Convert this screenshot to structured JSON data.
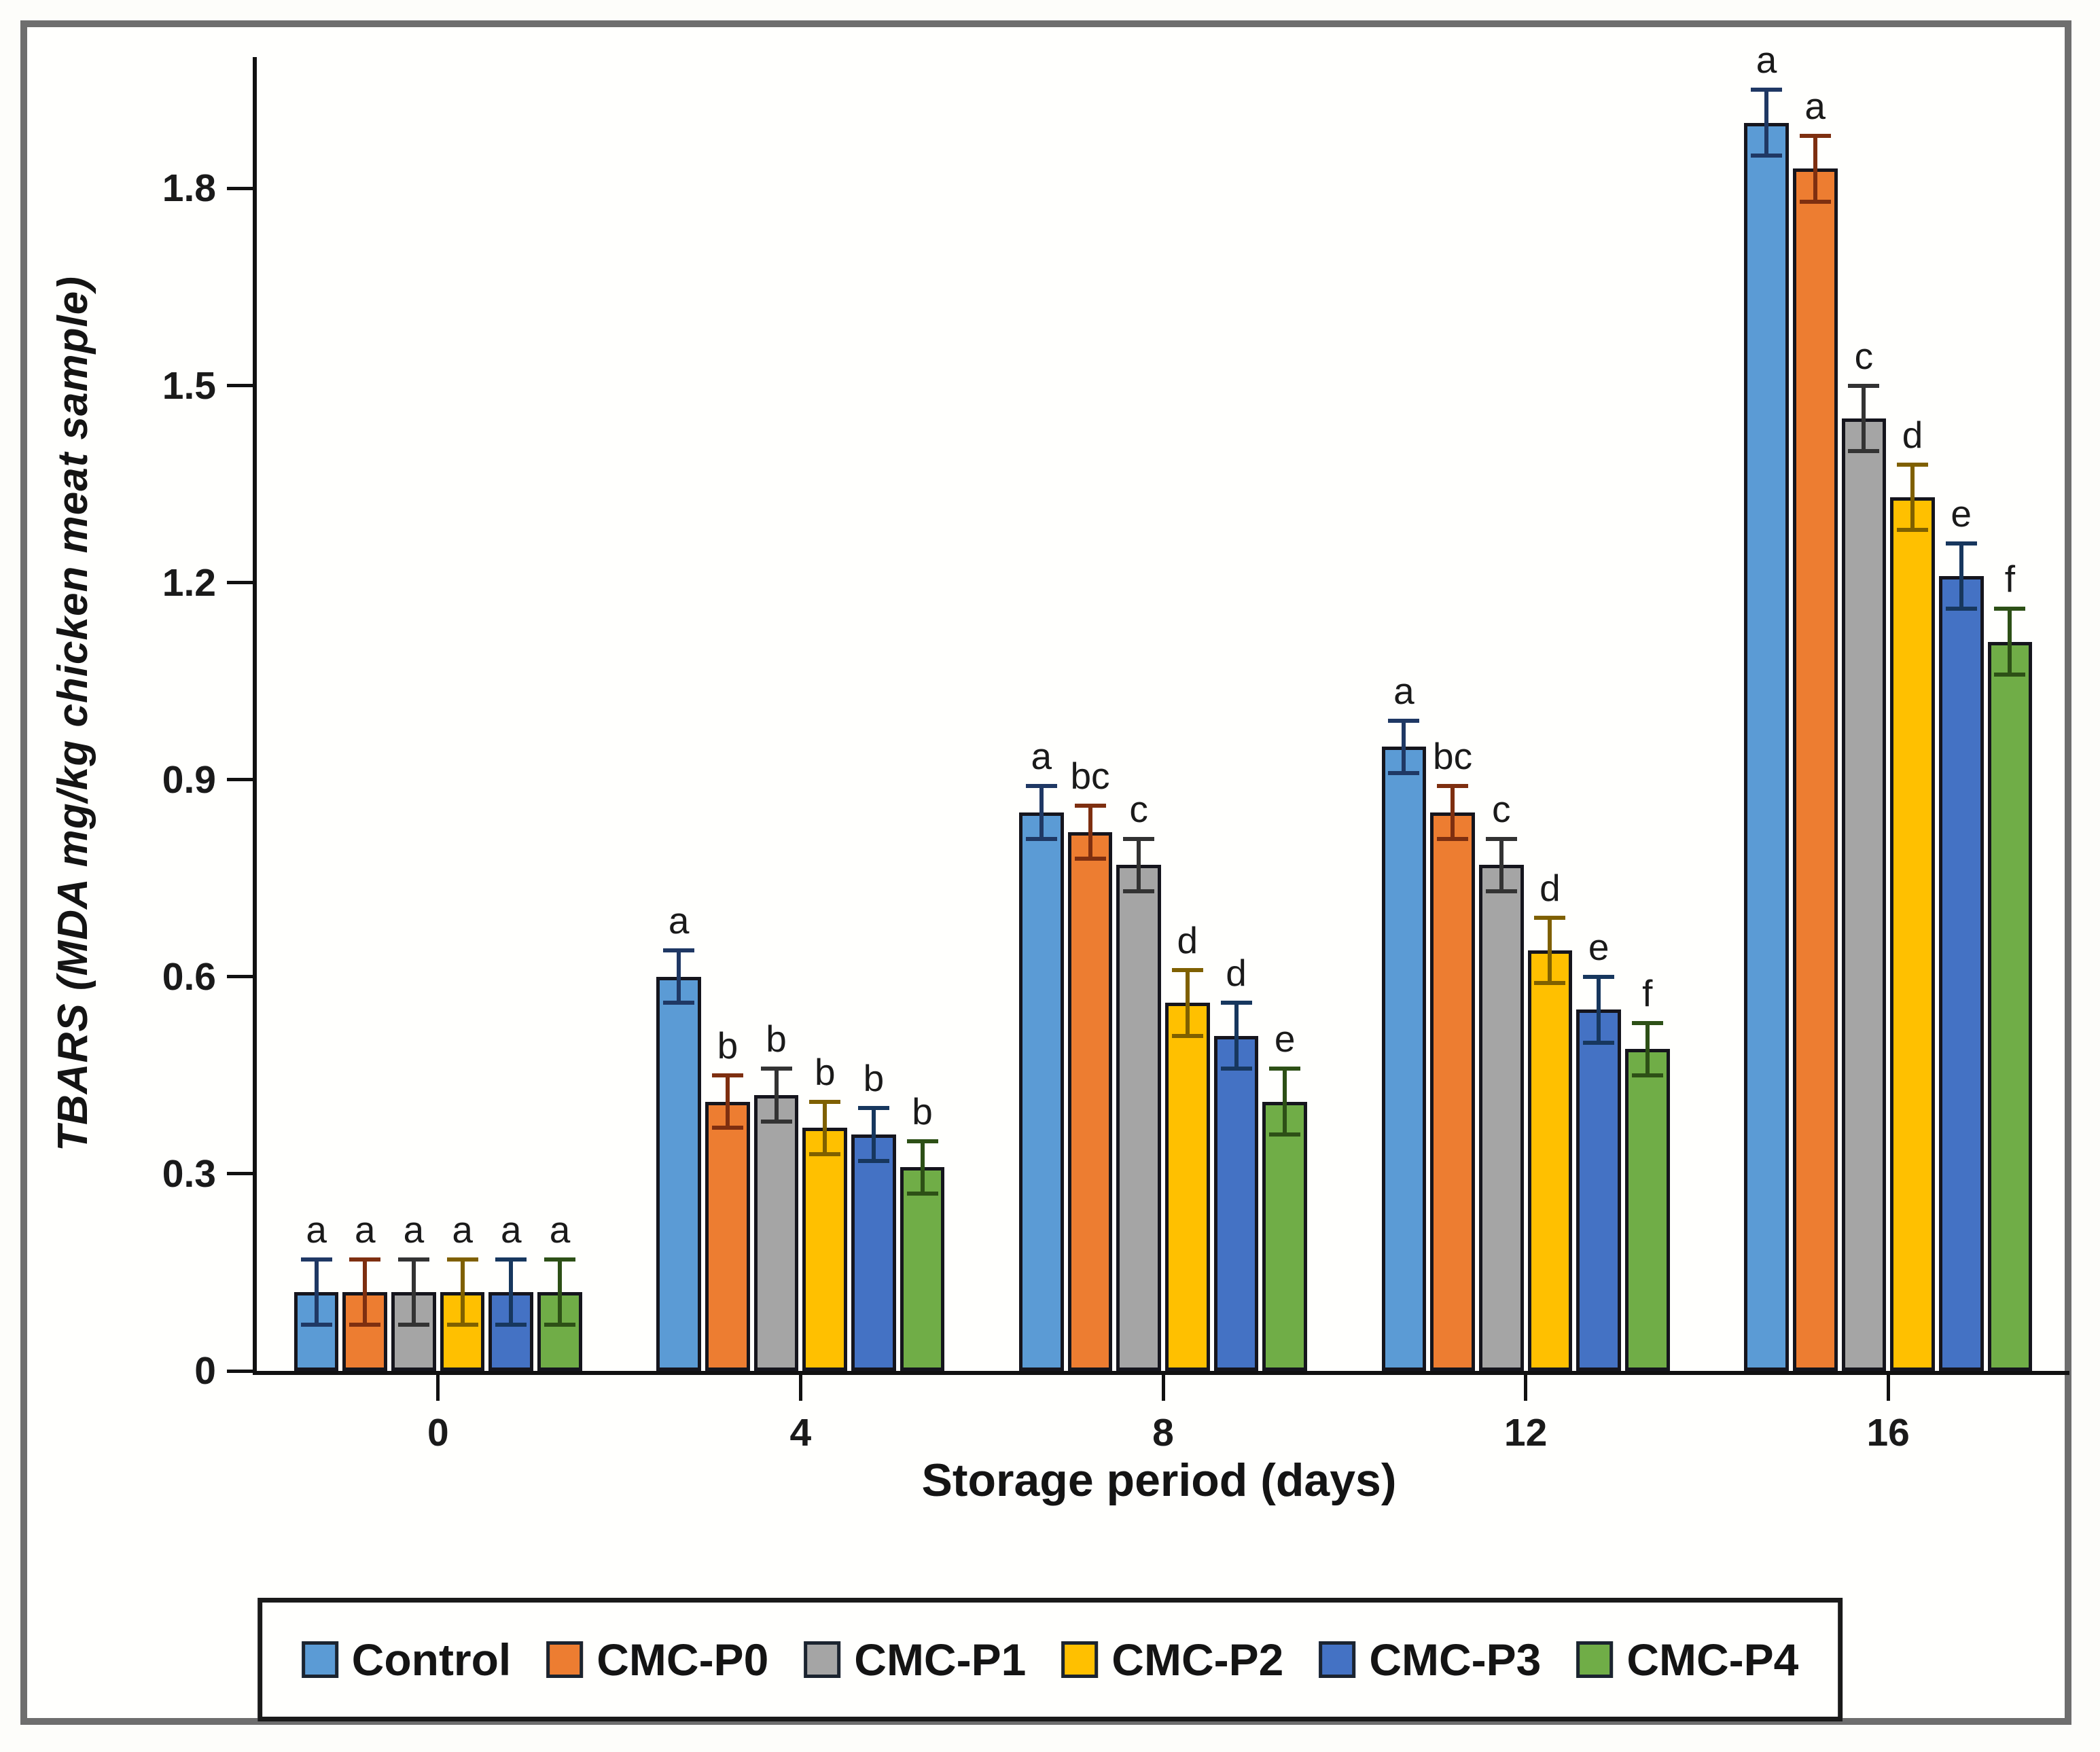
{
  "figure": {
    "frame_color": "#6e6e6e",
    "background": "#fffffd",
    "axis_color": "#111111"
  },
  "chart_data": {
    "type": "bar",
    "title": "",
    "xlabel": "Storage period (days)",
    "ylabel": "TBARS (MDA mg/kg chicken meat sample)",
    "categories": [
      "0",
      "4",
      "8",
      "12",
      "16"
    ],
    "yticks": [
      "0",
      "0.3",
      "0.6",
      "0.9",
      "1.2",
      "1.5",
      "1.8"
    ],
    "ylim": [
      0,
      2.0
    ],
    "grid": false,
    "legend_position": "bottom",
    "error_bars": "plus-minus with caps",
    "series": [
      {
        "name": "Control",
        "color": "#5B9BD5",
        "err_color": "#1F3864",
        "values": [
          0.12,
          0.6,
          0.85,
          0.95,
          1.9
        ],
        "errors": [
          0.05,
          0.04,
          0.04,
          0.04,
          0.05
        ],
        "letters": [
          "a",
          "a",
          "a",
          "a",
          "a"
        ]
      },
      {
        "name": "CMC-P0",
        "color": "#ED7D31",
        "err_color": "#7e2f10",
        "values": [
          0.12,
          0.41,
          0.82,
          0.85,
          1.83
        ],
        "errors": [
          0.05,
          0.04,
          0.04,
          0.04,
          0.05
        ],
        "letters": [
          "a",
          "b",
          "bc",
          "bc",
          "a"
        ]
      },
      {
        "name": "CMC-P1",
        "color": "#A5A5A5",
        "err_color": "#333333",
        "values": [
          0.12,
          0.42,
          0.77,
          0.77,
          1.45
        ],
        "errors": [
          0.05,
          0.04,
          0.04,
          0.04,
          0.05
        ],
        "letters": [
          "a",
          "b",
          "c",
          "c",
          "c"
        ]
      },
      {
        "name": "CMC-P2",
        "color": "#FFC000",
        "err_color": "#7F6000",
        "values": [
          0.12,
          0.37,
          0.56,
          0.64,
          1.33
        ],
        "errors": [
          0.05,
          0.04,
          0.05,
          0.05,
          0.05
        ],
        "letters": [
          "a",
          "b",
          "d",
          "d",
          "d"
        ]
      },
      {
        "name": "CMC-P3",
        "color": "#4472C4",
        "err_color": "#17375E",
        "values": [
          0.12,
          0.36,
          0.51,
          0.55,
          1.21
        ],
        "errors": [
          0.05,
          0.04,
          0.05,
          0.05,
          0.05
        ],
        "letters": [
          "a",
          "b",
          "d",
          "e",
          "e"
        ]
      },
      {
        "name": "CMC-P4",
        "color": "#70AD47",
        "err_color": "#2d5016",
        "values": [
          0.12,
          0.31,
          0.41,
          0.49,
          1.11
        ],
        "errors": [
          0.05,
          0.04,
          0.05,
          0.04,
          0.05
        ],
        "letters": [
          "a",
          "b",
          "e",
          "f",
          "f"
        ]
      }
    ]
  }
}
